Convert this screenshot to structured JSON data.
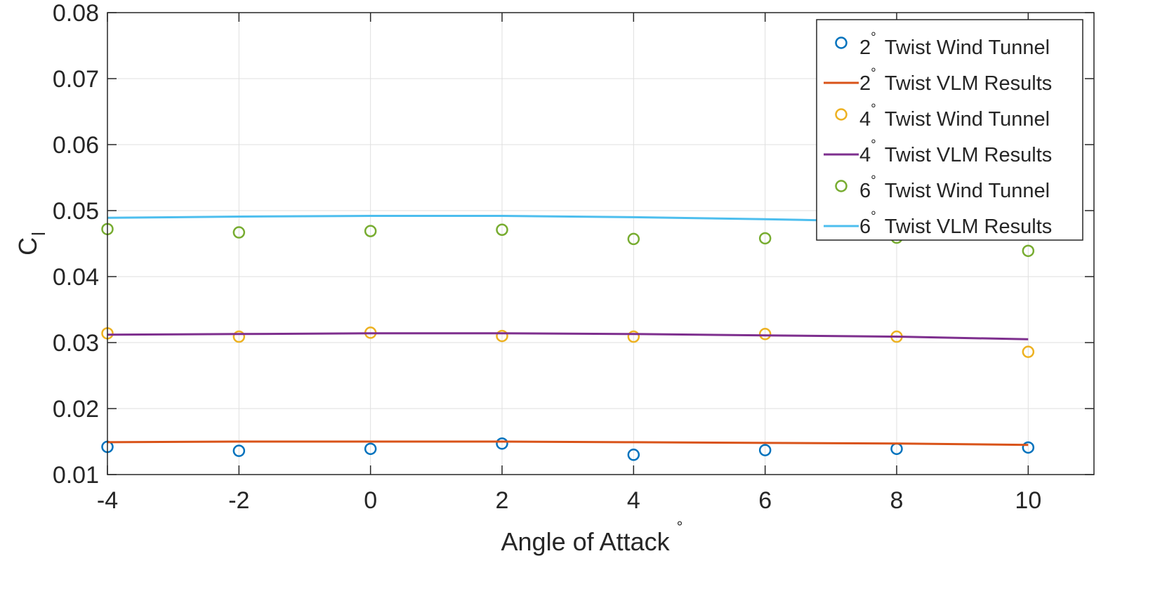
{
  "chart_data": {
    "type": "scatter",
    "xlabel": "Angle of Attack",
    "xlabel_sup": "°",
    "ylabel": "C",
    "ylabel_sub": "l",
    "xlim": [
      -4,
      11
    ],
    "ylim": [
      0.01,
      0.08
    ],
    "xticks": [
      -4,
      -2,
      0,
      2,
      4,
      6,
      8,
      10
    ],
    "xtick_labels": [
      "-4",
      "-2",
      "0",
      "2",
      "4",
      "6",
      "8",
      "10"
    ],
    "yticks": [
      0.01,
      0.02,
      0.03,
      0.04,
      0.05,
      0.06,
      0.07,
      0.08
    ],
    "ytick_labels": [
      "0.01",
      "0.02",
      "0.03",
      "0.04",
      "0.05",
      "0.06",
      "0.07",
      "0.08"
    ],
    "grid": true,
    "legend_position": "top-right",
    "series": [
      {
        "name_num": "2",
        "name_deg": "°",
        "name_rest": "Twist Wind Tunnel",
        "kind": "markers",
        "color": "#0072BD",
        "x": [
          -4,
          -2,
          0,
          2,
          4,
          6,
          8,
          10
        ],
        "y": [
          0.0142,
          0.0136,
          0.0139,
          0.0147,
          0.013,
          0.0137,
          0.0139,
          0.0141
        ]
      },
      {
        "name_num": "2",
        "name_deg": "°",
        "name_rest": "Twist VLM Results",
        "kind": "line",
        "color": "#D95319",
        "x": [
          -4,
          -2,
          0,
          1,
          2,
          4,
          6,
          8,
          10
        ],
        "y": [
          0.0149,
          0.015,
          0.015,
          0.015,
          0.015,
          0.0149,
          0.0148,
          0.0147,
          0.0145
        ]
      },
      {
        "name_num": "4",
        "name_deg": "°",
        "name_rest": "Twist Wind Tunnel",
        "kind": "markers",
        "color": "#EDB120",
        "x": [
          -4,
          -2,
          0,
          2,
          4,
          6,
          8,
          10
        ],
        "y": [
          0.0314,
          0.0309,
          0.0315,
          0.031,
          0.0309,
          0.0313,
          0.0309,
          0.0286
        ]
      },
      {
        "name_num": "4",
        "name_deg": "°",
        "name_rest": "Twist VLM Results",
        "kind": "line",
        "color": "#7E2F8E",
        "x": [
          -4,
          -2,
          0,
          1,
          2,
          4,
          6,
          8,
          10
        ],
        "y": [
          0.0312,
          0.0313,
          0.0314,
          0.0314,
          0.0314,
          0.0313,
          0.0311,
          0.0309,
          0.0305
        ]
      },
      {
        "name_num": "6",
        "name_deg": "°",
        "name_rest": "Twist Wind Tunnel",
        "kind": "markers",
        "color": "#77AC30",
        "x": [
          -4,
          -2,
          0,
          2,
          4,
          6,
          8,
          10
        ],
        "y": [
          0.0472,
          0.0467,
          0.0469,
          0.0471,
          0.0457,
          0.0458,
          0.0459,
          0.0439
        ]
      },
      {
        "name_num": "6",
        "name_deg": "°",
        "name_rest": "Twist VLM Results",
        "kind": "line",
        "color": "#4DBEEE",
        "x": [
          -4,
          -2,
          0,
          1,
          2,
          4,
          6,
          8,
          10
        ],
        "y": [
          0.0489,
          0.0491,
          0.0492,
          0.0492,
          0.0492,
          0.049,
          0.0487,
          0.0483,
          0.0477
        ]
      }
    ]
  }
}
